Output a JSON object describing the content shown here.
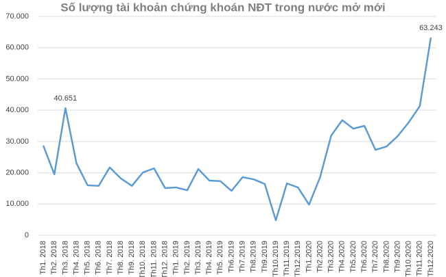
{
  "chart_data": {
    "type": "line",
    "title": "Số lượng tài khoản chứng khoán NĐT trong nước mở mới",
    "categories": [
      "Th1. 2018",
      "Th2. 2018",
      "Th3. 2018",
      "Th4. 2018",
      "Th5. 2018",
      "Th6. 2018",
      "Th7. 2018",
      "Th8. 2018",
      "Th9. 2018",
      "Th10. 2018",
      "Th11. 2018",
      "Th12. 2018",
      "Th1. 2019",
      "Th2. 2019",
      "Th3. 2019",
      "Th4. 2019",
      "Th5. 2019",
      "Th6.2019",
      "Th7.2019",
      "Th8.2019",
      "Th9.2019",
      "Th10.2019",
      "Th11.2019",
      "Th12.2019",
      "Th1.2020",
      "Th2.2020",
      "Th3.2020",
      "Th4.2020",
      "Th5.2020",
      "Th6.2020",
      "Th7.2020",
      "Th8.2020",
      "Th9.2020",
      "Th10.2020",
      "Th11.2020",
      "Th12.2020"
    ],
    "values": [
      28700,
      19500,
      40651,
      23000,
      16000,
      15800,
      21700,
      18200,
      15800,
      20100,
      21400,
      15100,
      15300,
      14400,
      21200,
      17500,
      17300,
      14200,
      18600,
      17900,
      16400,
      4800,
      16600,
      15300,
      9800,
      18600,
      31900,
      36800,
      34100,
      35000,
      27300,
      28400,
      31700,
      36100,
      41300,
      63243
    ],
    "value_labels": [
      null,
      null,
      "40.651",
      null,
      null,
      null,
      null,
      null,
      null,
      null,
      null,
      null,
      null,
      null,
      null,
      null,
      null,
      null,
      null,
      null,
      null,
      null,
      null,
      null,
      null,
      null,
      null,
      null,
      null,
      null,
      null,
      null,
      null,
      null,
      null,
      "63.243"
    ],
    "color": "#5b9bd5",
    "ylim": [
      0,
      70000
    ],
    "yticks": [
      0,
      {
        "value": 10000,
        "label": "10.000"
      },
      {
        "value": 20000,
        "label": "20.000"
      },
      {
        "value": 30000,
        "label": "30.000"
      },
      {
        "value": 40000,
        "label": "40.000"
      },
      {
        "value": 50000,
        "label": "50.000"
      },
      {
        "value": 60000,
        "label": "60.000"
      },
      {
        "value": 70000,
        "label": "70.000"
      }
    ],
    "grid": true
  }
}
